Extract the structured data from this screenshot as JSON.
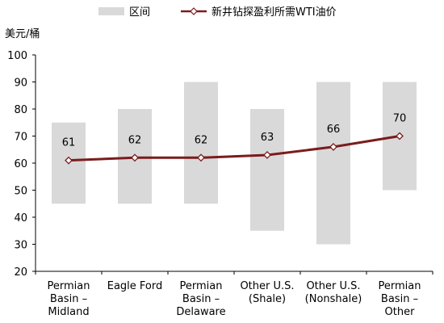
{
  "chart_data": {
    "type": "bar",
    "unit_label": "美元/桶",
    "categories": [
      [
        "Permian",
        "Basin –",
        "Midland"
      ],
      [
        "Eagle Ford"
      ],
      [
        "Permian",
        "Basin –",
        "Delaware"
      ],
      [
        "Other U.S.",
        "(Shale)"
      ],
      [
        "Other U.S.",
        "(Nonshale)"
      ],
      [
        "Permian",
        "Basin –",
        "Other"
      ]
    ],
    "ylim": [
      20,
      100
    ],
    "yticks": [
      "20",
      "30",
      "40",
      "50",
      "60",
      "70",
      "80",
      "90",
      "100"
    ],
    "grid": false,
    "legend_position": "top",
    "series": [
      {
        "name": "区间",
        "kind": "floating-bar",
        "color": "#d9d9d9",
        "ranges": [
          [
            45,
            75
          ],
          [
            45,
            80
          ],
          [
            45,
            90
          ],
          [
            35,
            80
          ],
          [
            30,
            90
          ],
          [
            50,
            90
          ]
        ]
      },
      {
        "name": "新井钻探盈利所需WTI油价",
        "kind": "line",
        "color": "#7b1c1c",
        "marker": "diamond",
        "values": [
          61,
          62,
          62,
          63,
          66,
          70
        ],
        "labels": [
          "61",
          "62",
          "62",
          "63",
          "66",
          "70"
        ]
      }
    ]
  }
}
